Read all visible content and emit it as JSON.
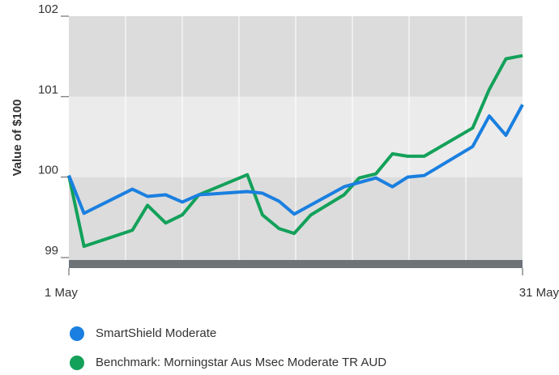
{
  "chart_data": {
    "type": "line",
    "y_label": "Value of $100",
    "ylim": [
      99,
      102
    ],
    "yticks": [
      99,
      100,
      101,
      102
    ],
    "xlim": [
      1,
      31
    ],
    "xticks": [
      {
        "value": 1,
        "label": "1 May"
      },
      {
        "value": 31,
        "label": "31 May"
      }
    ],
    "series": [
      {
        "name": "SmartShield Moderate",
        "color": "#1a7fe0",
        "x": [
          1,
          2.0,
          5.2,
          6.2,
          7.4,
          8.5,
          9.6,
          12.8,
          13.8,
          14.9,
          15.9,
          19.2,
          21.3,
          22.4,
          23.4,
          24.5,
          27.7,
          28.8,
          29.9,
          31
        ],
        "values": [
          100.02,
          99.55,
          99.85,
          99.76,
          99.78,
          99.69,
          99.78,
          99.82,
          99.8,
          99.7,
          99.54,
          99.88,
          99.99,
          99.88,
          100.0,
          100.02,
          100.38,
          100.76,
          100.52,
          100.9
        ]
      },
      {
        "name": "Benchmark: Morningstar Aus Msec Moderate TR AUD",
        "color": "#13a15a",
        "x": [
          1,
          2.0,
          5.2,
          6.2,
          7.4,
          8.5,
          9.6,
          12.8,
          13.8,
          14.9,
          15.9,
          17.0,
          19.2,
          20.2,
          21.3,
          22.4,
          23.4,
          24.5,
          27.7,
          28.8,
          29.9,
          31
        ],
        "values": [
          100.02,
          99.14,
          99.34,
          99.65,
          99.43,
          99.53,
          99.78,
          100.03,
          99.53,
          99.36,
          99.3,
          99.53,
          99.78,
          99.99,
          100.04,
          100.29,
          100.26,
          100.26,
          100.61,
          101.09,
          101.47,
          101.51
        ]
      }
    ]
  }
}
